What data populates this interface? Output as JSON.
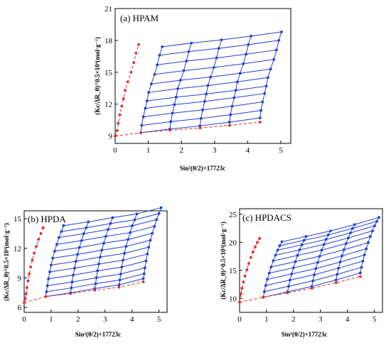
{
  "chart_data": [
    {
      "type": "scatter",
      "panel_label": "(a) HPAM",
      "xlabel": "Sin²(θ/2)+17723c",
      "ylabel": "(Kc/ΔR_θ)^0.5×10⁴(mol·g⁻¹)",
      "xlim": [
        0,
        5.3
      ],
      "ylim": [
        8.3,
        21
      ],
      "xticks": [
        0,
        1,
        2,
        3,
        4,
        5
      ],
      "yticks": [
        9,
        12,
        15,
        18,
        21
      ],
      "grid": false,
      "legend": "none",
      "colors": {
        "grid_lines": "#1f3fd6",
        "extrapolation": "#e8262a"
      },
      "angle_lines": {
        "c0_x": [
          0.06,
          0.09,
          0.14,
          0.2,
          0.25,
          0.3,
          0.38,
          0.48,
          0.56,
          0.63,
          0.71
        ],
        "c0_y": [
          9.5,
          10.2,
          11.0,
          11.8,
          12.5,
          13.3,
          14.1,
          15.0,
          15.9,
          16.8,
          17.6
        ],
        "x_step": 0.89,
        "y_step": 0.1
      },
      "conc_lines": {
        "theta0_x": [
          0.77,
          1.65,
          2.56,
          3.45,
          4.37
        ],
        "theta0_y": [
          9.3,
          9.55,
          9.75,
          10.0,
          10.3
        ],
        "x_step": 0.078,
        "y_step": 0.82
      },
      "zero_angle_line": {
        "x": [
          0,
          0.77,
          1.65,
          2.56,
          3.45,
          4.37
        ],
        "y": [
          9.0,
          9.3,
          9.55,
          9.75,
          10.0,
          10.3
        ]
      },
      "zero_conc_line": {
        "x": [
          0,
          0.06,
          0.09,
          0.14,
          0.2,
          0.25,
          0.3,
          0.38,
          0.48,
          0.56,
          0.63,
          0.71
        ],
        "y": [
          9.0,
          9.5,
          10.2,
          11.0,
          11.8,
          12.5,
          13.3,
          14.1,
          15.0,
          15.9,
          16.8,
          17.6
        ]
      }
    },
    {
      "type": "scatter",
      "panel_label": "(b) HPDA",
      "xlabel": "Sin²(θ/2)+17723c",
      "ylabel": "(Kc/ΔR_θ)^0.5×10⁴(mol·g⁻¹)",
      "xlim": [
        0,
        5.3
      ],
      "ylim": [
        5.5,
        15.8
      ],
      "xticks": [
        0,
        1,
        2,
        3,
        4,
        5
      ],
      "yticks": [
        6,
        9,
        12,
        15
      ],
      "grid": false,
      "legend": "none",
      "colors": {
        "grid_lines": "#1f3fd6",
        "extrapolation": "#e8262a"
      },
      "angle_lines": {
        "c0_x": [
          0.04,
          0.07,
          0.1,
          0.14,
          0.19,
          0.24,
          0.3,
          0.37,
          0.45,
          0.53,
          0.62,
          0.7
        ],
        "c0_y": [
          6.9,
          7.4,
          8.0,
          8.7,
          9.4,
          10.1,
          10.8,
          11.5,
          12.2,
          12.9,
          13.5,
          14.1
        ],
        "x_step": 0.89,
        "y_step": 0.08
      },
      "conc_lines": {
        "theta0_x": [
          0.8,
          1.72,
          2.62,
          3.52,
          4.42
        ],
        "theta0_y": [
          7.1,
          7.4,
          7.75,
          8.05,
          8.6
        ],
        "x_step": 0.0165,
        "y_step": 0.6
      },
      "zero_angle_line": {
        "x": [
          0,
          0.8,
          1.72,
          2.62,
          3.52,
          4.42
        ],
        "y": [
          6.5,
          7.1,
          7.4,
          7.75,
          8.05,
          8.6
        ]
      },
      "zero_conc_line": {
        "x": [
          0,
          0.04,
          0.07,
          0.1,
          0.14,
          0.19,
          0.24,
          0.3,
          0.37,
          0.45,
          0.53,
          0.62,
          0.7
        ],
        "y": [
          6.5,
          6.9,
          7.4,
          8.0,
          8.7,
          9.4,
          10.1,
          10.8,
          11.5,
          12.2,
          12.9,
          13.5,
          14.1
        ]
      }
    },
    {
      "type": "scatter",
      "panel_label": "(c) HPDACS",
      "xlabel": "Sin²(θ/2)+17723c",
      "ylabel": "(Kc/ΔR_θ)^0.5×10⁴(mol·g⁻¹)",
      "xlim": [
        0,
        5.3
      ],
      "ylim": [
        7.5,
        26.0
      ],
      "xticks": [
        0,
        1,
        2,
        3,
        4,
        5
      ],
      "yticks": [
        10,
        15,
        20,
        25
      ],
      "grid": false,
      "legend": "none",
      "colors": {
        "grid_lines": "#1f3fd6",
        "extrapolation": "#e8262a"
      },
      "angle_lines": {
        "c0_x": [
          0.05,
          0.09,
          0.14,
          0.2,
          0.27,
          0.34,
          0.42,
          0.5,
          0.58,
          0.66,
          0.74
        ],
        "c0_y": [
          10.8,
          11.8,
          12.9,
          14.0,
          15.1,
          16.2,
          17.3,
          18.3,
          19.2,
          20.0,
          20.7
        ],
        "x_step": 0.88,
        "y_step": 0.16
      },
      "conc_lines": {
        "theta0_x": [
          0.88,
          1.78,
          2.68,
          3.58,
          4.48
        ],
        "theta0_y": [
          10.2,
          11.0,
          11.8,
          12.8,
          13.9
        ],
        "x_step": 0.058,
        "y_step": 1.1
      },
      "zero_angle_line": {
        "x": [
          0,
          0.88,
          1.78,
          2.68,
          3.58,
          4.48
        ],
        "y": [
          9.3,
          10.2,
          11.0,
          11.8,
          12.8,
          13.9
        ]
      },
      "zero_conc_line": {
        "x": [
          0,
          0.05,
          0.09,
          0.14,
          0.2,
          0.27,
          0.34,
          0.42,
          0.5,
          0.58,
          0.66,
          0.74
        ],
        "y": [
          9.3,
          10.8,
          11.8,
          12.9,
          14.0,
          15.1,
          16.2,
          17.3,
          18.3,
          19.2,
          20.0,
          20.7
        ]
      }
    }
  ]
}
